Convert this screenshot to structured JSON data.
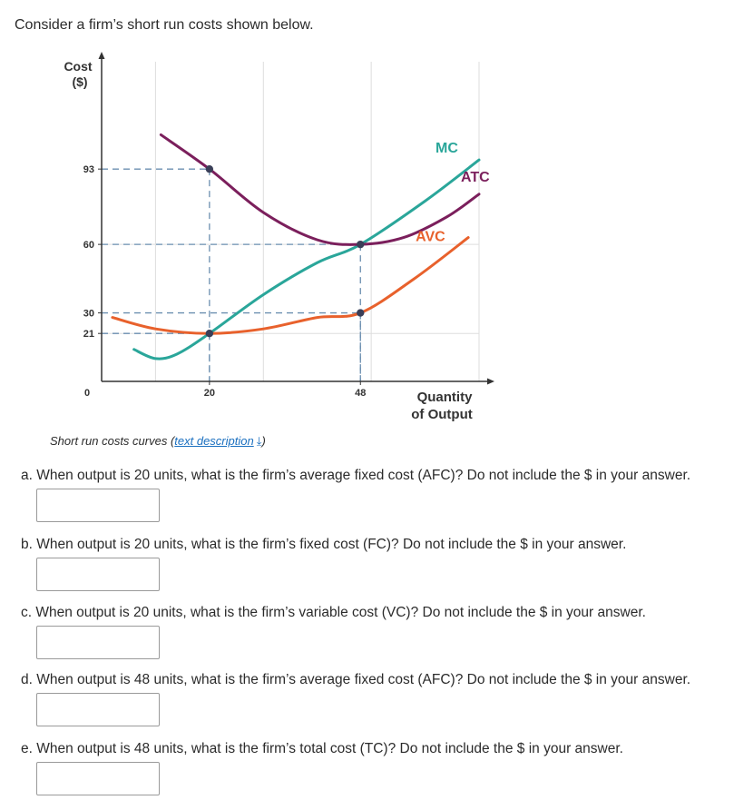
{
  "intro": "Consider a firm’s short run costs shown below.",
  "caption": {
    "text": "Short run costs curves (",
    "link": "text description",
    "close": ")"
  },
  "colors": {
    "MC": "#2aa69a",
    "ATC": "#7b1f5c",
    "AVC": "#e8612c",
    "point": "#3a3f58",
    "grid": "#dddddd",
    "guide": "#6b8fb0"
  },
  "chart_data": {
    "type": "line",
    "ylabel": "Cost ($)",
    "xlabel": "Quantity of Output",
    "x_ticks": [
      "0",
      "20",
      "48"
    ],
    "y_ticks": [
      "93",
      "60",
      "30",
      "21"
    ],
    "xlim": [
      0,
      70
    ],
    "ylim": [
      0,
      140
    ],
    "series": [
      {
        "name": "MC",
        "points": [
          [
            6,
            14
          ],
          [
            10,
            10
          ],
          [
            14,
            12
          ],
          [
            20,
            21
          ],
          [
            30,
            38
          ],
          [
            40,
            52
          ],
          [
            48,
            60
          ],
          [
            60,
            79
          ],
          [
            70,
            97
          ]
        ]
      },
      {
        "name": "ATC",
        "points": [
          [
            11,
            108
          ],
          [
            20,
            93
          ],
          [
            30,
            74
          ],
          [
            40,
            62
          ],
          [
            48,
            60
          ],
          [
            56,
            63
          ],
          [
            64,
            72
          ],
          [
            70,
            82
          ]
        ]
      },
      {
        "name": "AVC",
        "points": [
          [
            2,
            28
          ],
          [
            10,
            23
          ],
          [
            20,
            21
          ],
          [
            30,
            23
          ],
          [
            40,
            28
          ],
          [
            48,
            30
          ],
          [
            58,
            45
          ],
          [
            68,
            63
          ]
        ]
      }
    ],
    "points": [
      [
        20,
        93
      ],
      [
        20,
        21
      ],
      [
        48,
        60
      ],
      [
        48,
        30
      ]
    ],
    "guides": [
      [
        20,
        93
      ],
      [
        20,
        21
      ],
      [
        48,
        60
      ],
      [
        48,
        30
      ]
    ]
  },
  "questions": [
    {
      "id": "a",
      "text": "a. When output is 20 units, what is the firm’s average fixed cost (AFC)? Do not include the $ in your answer."
    },
    {
      "id": "b",
      "text": "b. When output is 20 units, what is the firm’s fixed cost (FC)? Do not include the $ in your answer."
    },
    {
      "id": "c",
      "text": "c. When output is 20 units, what is the firm’s variable cost (VC)? Do not include the $ in your answer."
    },
    {
      "id": "d",
      "text": "d. When output is 48 units, what is the firm’s average fixed cost (AFC)? Do not include the $ in your answer."
    },
    {
      "id": "e",
      "text": "e. When output is 48 units, what is the firm’s total cost (TC)? Do not include the $ in your answer."
    }
  ]
}
